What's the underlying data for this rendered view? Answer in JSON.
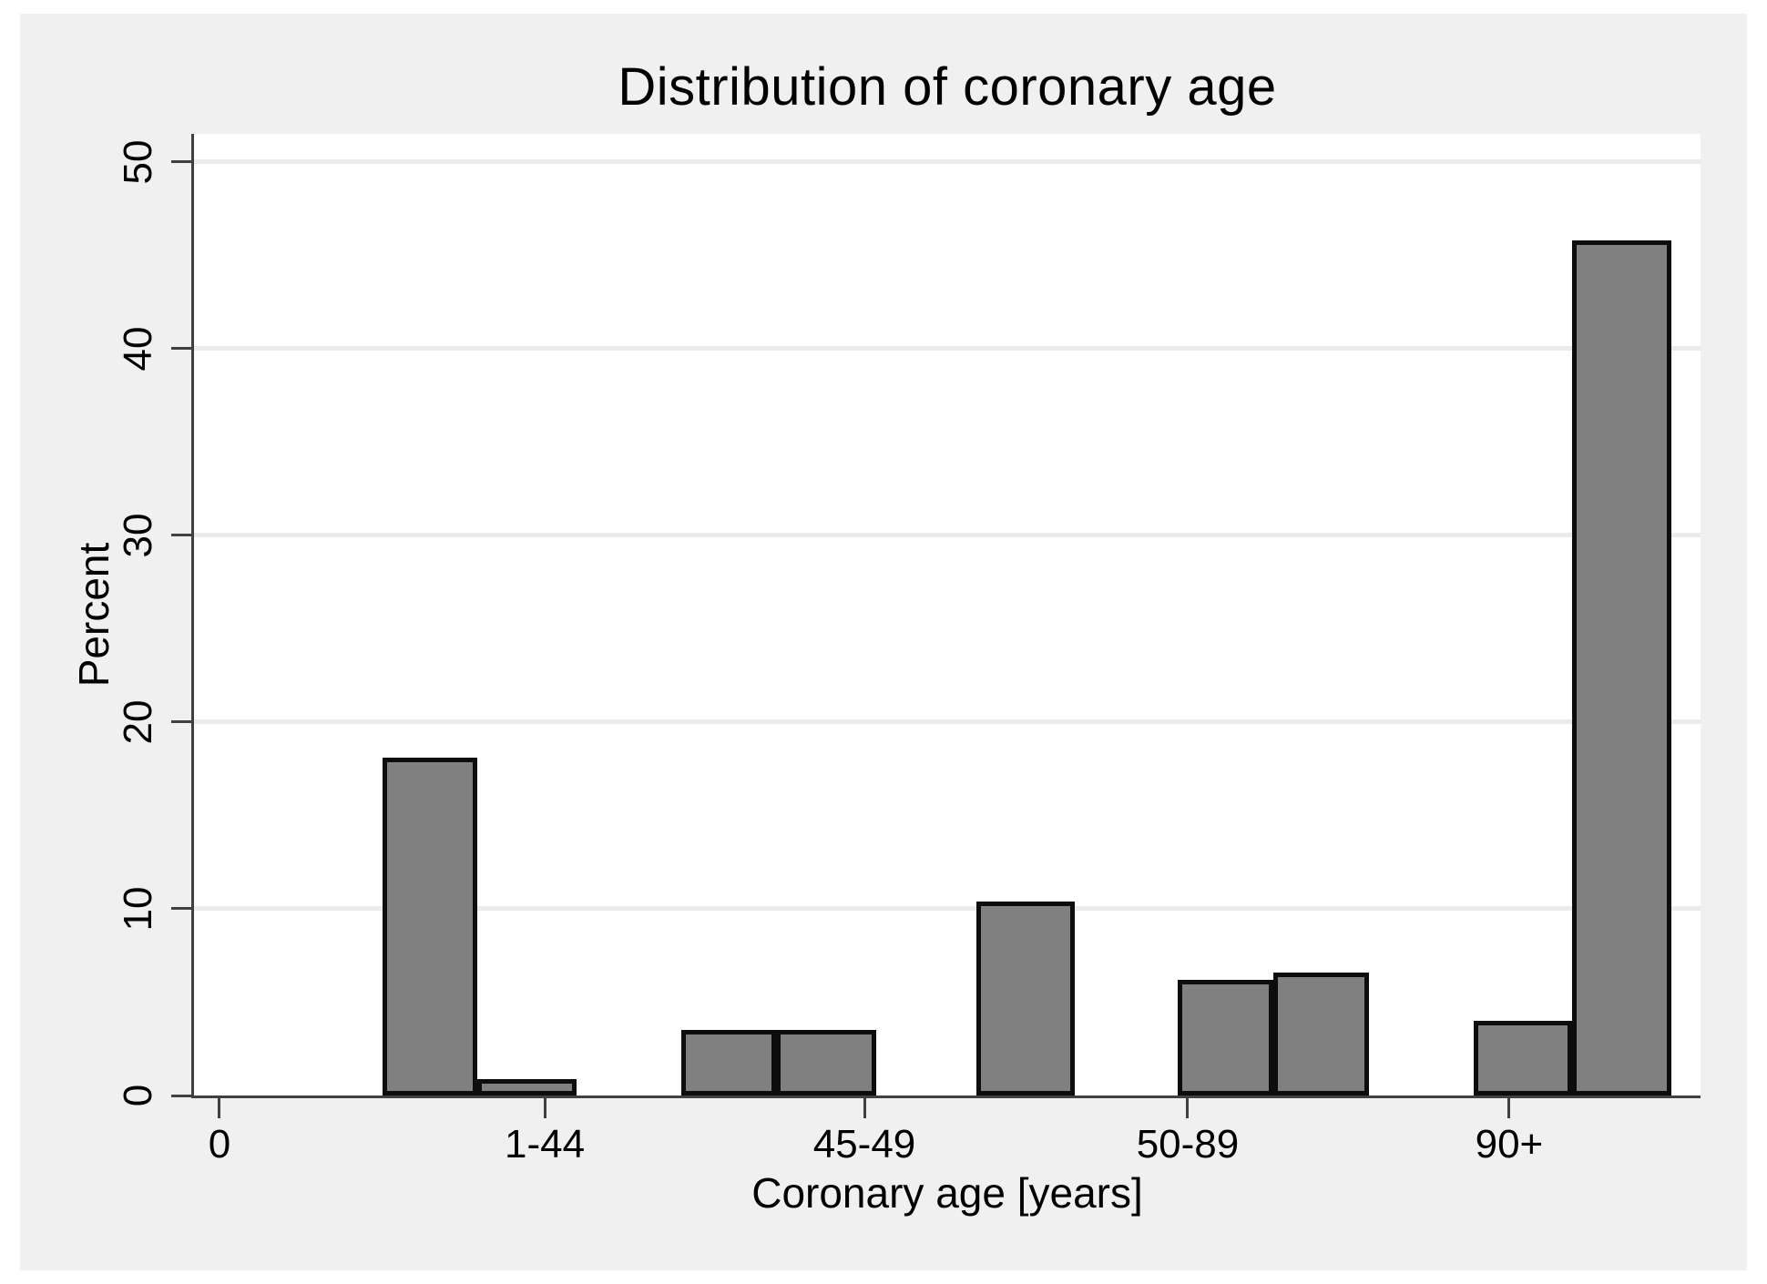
{
  "chart_data": {
    "type": "bar",
    "variant": "histogram",
    "title": "Distribution of coronary age",
    "xlabel": "Coronary age [years]",
    "ylabel": "Percent",
    "ylim": [
      0,
      51.5
    ],
    "grid": true,
    "legend": null,
    "yticks": [
      {
        "label": "0",
        "value": 0
      },
      {
        "label": "10",
        "value": 10
      },
      {
        "label": "20",
        "value": 20
      },
      {
        "label": "30",
        "value": 30
      },
      {
        "label": "40",
        "value": 40
      },
      {
        "label": "50",
        "value": 50
      }
    ],
    "xticks": [
      {
        "label": "0",
        "pos_pct": 1.69
      },
      {
        "label": "1-44",
        "pos_pct": 23.28
      },
      {
        "label": "45-49",
        "pos_pct": 44.5
      },
      {
        "label": "50-89",
        "pos_pct": 65.96
      },
      {
        "label": "90+",
        "pos_pct": 87.3
      }
    ],
    "bars": [
      {
        "left_pct": 12.52,
        "width_pct": 6.29,
        "percent": 18.1
      },
      {
        "left_pct": 18.8,
        "width_pct": 6.59,
        "percent": 0.9
      },
      {
        "left_pct": 32.35,
        "width_pct": 6.29,
        "percent": 3.5
      },
      {
        "left_pct": 38.63,
        "width_pct": 6.65,
        "percent": 3.5
      },
      {
        "left_pct": 51.93,
        "width_pct": 6.53,
        "percent": 10.4
      },
      {
        "left_pct": 65.3,
        "width_pct": 6.35,
        "percent": 6.2
      },
      {
        "left_pct": 71.64,
        "width_pct": 6.35,
        "percent": 6.6
      },
      {
        "left_pct": 84.95,
        "width_pct": 6.53,
        "percent": 4.0
      },
      {
        "left_pct": 91.48,
        "width_pct": 6.59,
        "percent": 45.8
      }
    ]
  },
  "colors": {
    "bar_fill": "#808080",
    "bar_border": "#0d0d0d",
    "plot_bg": "#ffffff",
    "region_bg": "#f0f0f0",
    "grid": "#ebebeb",
    "axis": "#404040",
    "text": "#000000"
  }
}
